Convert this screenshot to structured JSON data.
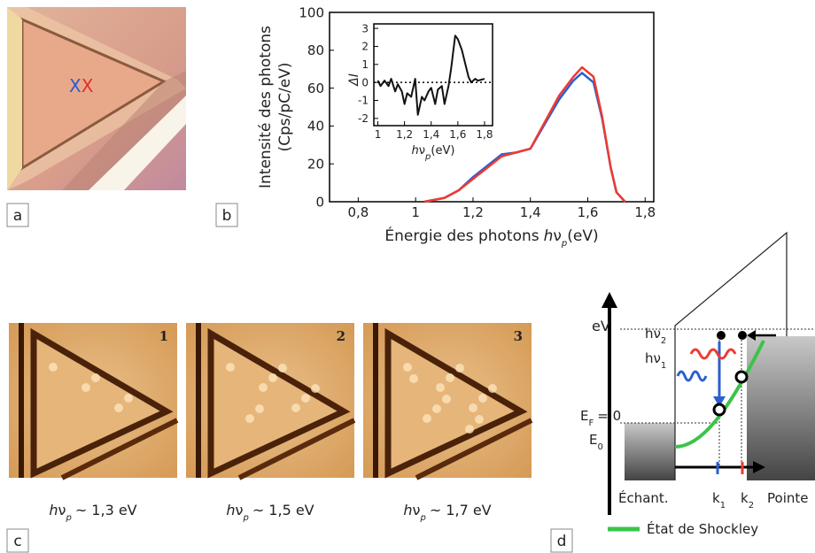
{
  "panel_labels": [
    "a",
    "b",
    "c",
    "d"
  ],
  "panel_a": {
    "marks": [
      {
        "text": "X",
        "color": "#2a5bd7"
      },
      {
        "text": "X",
        "color": "#e0302a"
      }
    ]
  },
  "chart_data": [
    {
      "type": "line",
      "ylabel": [
        "Intensité des photons",
        "(Cps/pC/eV)"
      ],
      "xlabel": "Énergie des photons",
      "xlabel_var": "h",
      "xlabel_nu": "ν",
      "xlabel_sub": "p",
      "xlabel_unit": "(eV)",
      "x": [
        1.03,
        1.1,
        1.15,
        1.2,
        1.25,
        1.3,
        1.35,
        1.4,
        1.45,
        1.5,
        1.55,
        1.58,
        1.62,
        1.65,
        1.68,
        1.7,
        1.73
      ],
      "series": [
        {
          "color": "#2b5fd0",
          "values": [
            0,
            2,
            6,
            13,
            19,
            25,
            26,
            28,
            41,
            54,
            64,
            68,
            63,
            44,
            18,
            5,
            0
          ]
        },
        {
          "color": "#ee3a30",
          "values": [
            0,
            2,
            6,
            12,
            18,
            24,
            26,
            28,
            42,
            56,
            66,
            71,
            66,
            45,
            18,
            5,
            0
          ]
        }
      ],
      "xlim": [
        0.7,
        1.83
      ],
      "ylim": [
        0,
        100
      ],
      "xticks": [
        {
          "value": 0.8,
          "label": "0,8"
        },
        1,
        {
          "value": 1.2,
          "label": "1,2"
        },
        {
          "value": 1.4,
          "label": "1,4"
        },
        {
          "value": 1.6,
          "label": "1,6"
        },
        {
          "value": 1.8,
          "label": "1,8"
        }
      ],
      "yticks": [
        0,
        20,
        40,
        60,
        80,
        100
      ]
    },
    {
      "type": "line",
      "ylabel": "ΔI",
      "xlabel_var": "h",
      "xlabel_nu": "ν",
      "xlabel_sub": "p",
      "xlabel_unit": "(eV)",
      "x": [
        1,
        1.02,
        1.05,
        1.08,
        1.1,
        1.13,
        1.15,
        1.18,
        1.2,
        1.22,
        1.25,
        1.28,
        1.3,
        1.33,
        1.35,
        1.38,
        1.4,
        1.43,
        1.45,
        1.48,
        1.5,
        1.53,
        1.55,
        1.58,
        1.6,
        1.63,
        1.65,
        1.68,
        1.7,
        1.73,
        1.75,
        1.8
      ],
      "series": [
        {
          "color": "#111111",
          "values": [
            0.1,
            -0.2,
            0.1,
            -0.2,
            0.2,
            -0.5,
            -0.1,
            -0.5,
            -1.2,
            -0.6,
            -0.8,
            0.2,
            -1.8,
            -0.8,
            -1,
            -0.5,
            -0.3,
            -1.2,
            -0.4,
            -0.2,
            -1.2,
            -0.2,
            0.8,
            2.6,
            2.4,
            1.8,
            1.2,
            0.3,
            0,
            0.2,
            0.1,
            0.2
          ]
        }
      ],
      "reference_line": 0,
      "xlim": [
        0.97,
        1.86
      ],
      "ylim": [
        -2.4,
        3.25
      ],
      "xticks": [
        1,
        {
          "value": 1.2,
          "label": "1,2"
        },
        {
          "value": 1.4,
          "label": "1,4"
        },
        {
          "value": 1.6,
          "label": "1,6"
        },
        {
          "value": 1.8,
          "label": "1,8"
        }
      ],
      "yticks": [
        -2,
        -1,
        0,
        1,
        2,
        3
      ]
    }
  ],
  "panel_c": {
    "images": [
      {
        "number": "1",
        "var": "h",
        "nu": "ν",
        "sub": "p",
        "text": "~ 1,3 eV"
      },
      {
        "number": "2",
        "var": "h",
        "nu": "ν",
        "sub": "p",
        "text": "~ 1,5 eV"
      },
      {
        "number": "3",
        "var": "h",
        "nu": "ν",
        "sub": "p",
        "text": "~ 1,7 eV"
      }
    ]
  },
  "panel_d": {
    "energy": "eV",
    "hv2": {
      "nu": "hν",
      "sub": "2"
    },
    "hv1": {
      "nu": "hν",
      "sub": "1"
    },
    "fermi": {
      "e": "E",
      "sub": "F",
      "rest": "= 0"
    },
    "e0": {
      "e": "E",
      "sub": "0"
    },
    "sample": "Échant.",
    "k1": {
      "k": "k",
      "sub": "1"
    },
    "k2": {
      "k": "k",
      "sub": "2"
    },
    "tip": "Pointe",
    "legend": "État de Shockley"
  }
}
